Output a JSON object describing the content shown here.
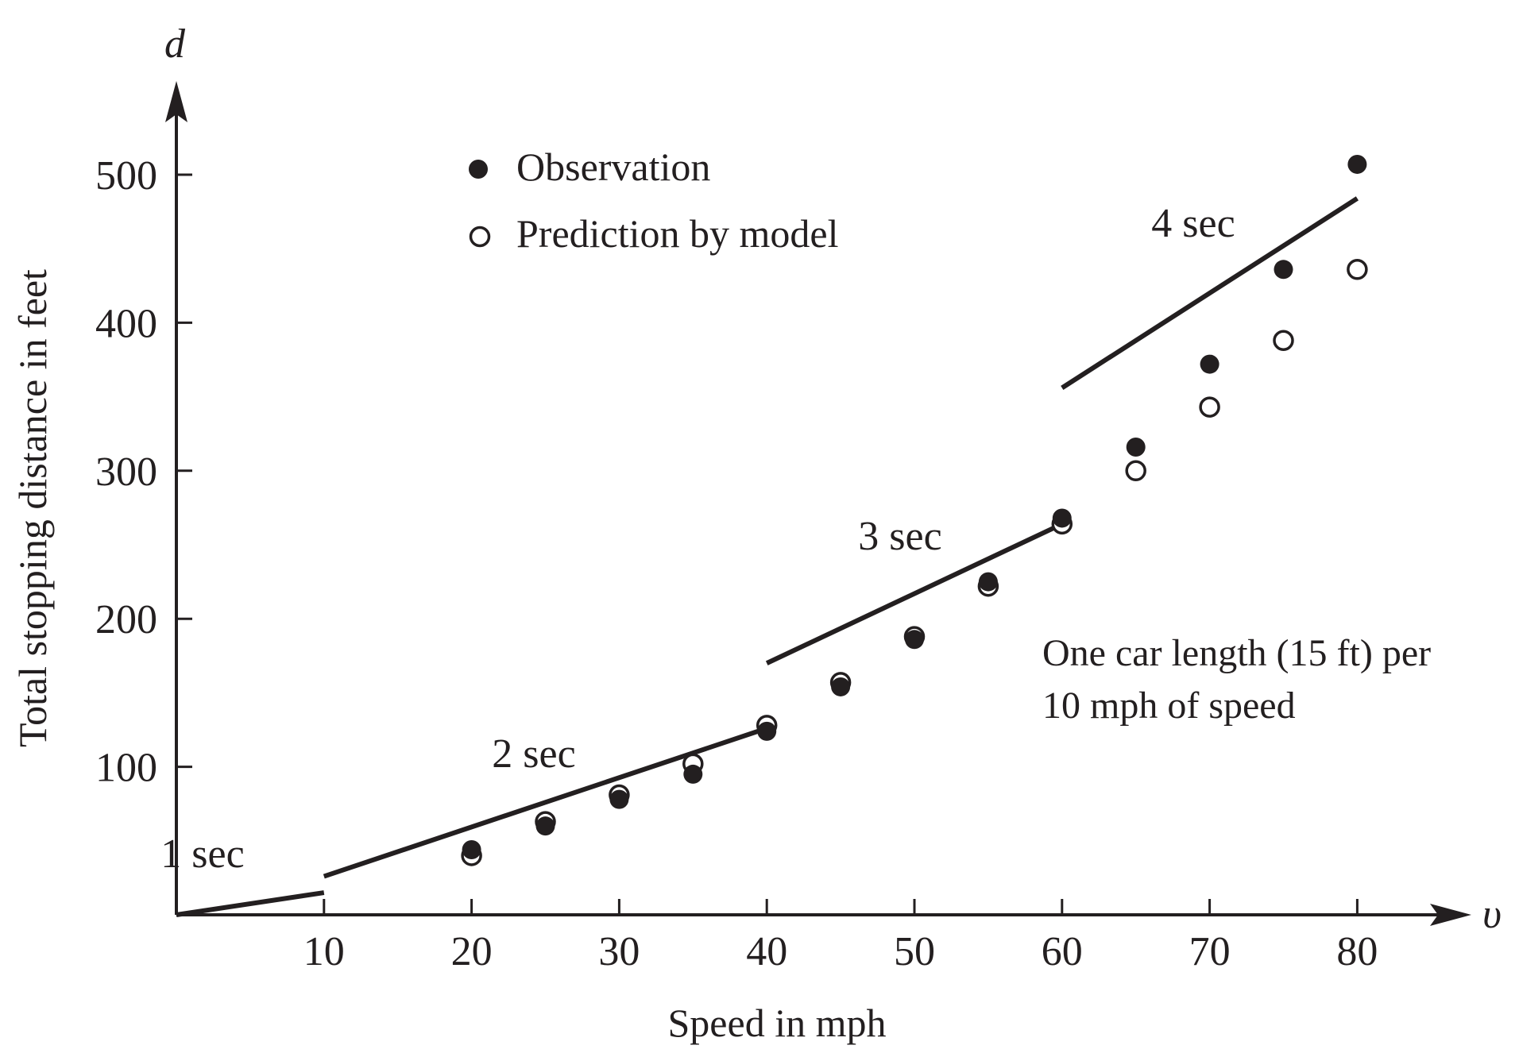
{
  "chart_data": {
    "type": "scatter",
    "xlabel": "Speed in mph",
    "ylabel": "Total stopping distance in feet",
    "x_var": "υ",
    "y_var": "d",
    "xlim": [
      0,
      88
    ],
    "ylim": [
      0,
      560
    ],
    "x_ticks": [
      10,
      20,
      30,
      40,
      50,
      60,
      70,
      80
    ],
    "y_ticks": [
      100,
      200,
      300,
      400,
      500
    ],
    "grid": false,
    "legend": "top-left",
    "series": [
      {
        "name": "Observation",
        "marker": "filled-circle",
        "x": [
          20,
          25,
          30,
          35,
          40,
          45,
          50,
          55,
          60,
          65,
          70,
          75,
          80
        ],
        "y": [
          44,
          60,
          78,
          95,
          124,
          154,
          186,
          225,
          268,
          316,
          372,
          436,
          507
        ]
      },
      {
        "name": "Prediction by model",
        "marker": "open-circle",
        "x": [
          20,
          25,
          30,
          35,
          40,
          45,
          50,
          55,
          60,
          65,
          70,
          75,
          80
        ],
        "y": [
          40,
          63,
          81,
          102,
          128,
          157,
          188,
          222,
          264,
          300,
          343,
          388,
          436
        ]
      }
    ],
    "segments": [
      {
        "label": "1 sec",
        "from": [
          0,
          0
        ],
        "to": [
          10,
          15
        ]
      },
      {
        "label": "2 sec",
        "from": [
          10,
          26
        ],
        "to": [
          40,
          126
        ]
      },
      {
        "label": "3 sec",
        "from": [
          40,
          170
        ],
        "to": [
          60,
          264
        ]
      },
      {
        "label": "4 sec",
        "from": [
          60,
          356
        ],
        "to": [
          80,
          484
        ]
      }
    ],
    "annotation": [
      "One car length (15 ft) per",
      "10 mph of speed"
    ]
  },
  "colors": {
    "ink": "#231f20",
    "background": "#ffffff"
  }
}
